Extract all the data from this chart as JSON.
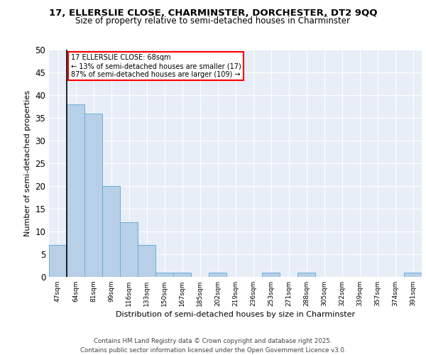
{
  "title1": "17, ELLERSLIE CLOSE, CHARMINSTER, DORCHESTER, DT2 9QQ",
  "title2": "Size of property relative to semi-detached houses in Charminster",
  "xlabel": "Distribution of semi-detached houses by size in Charminster",
  "ylabel": "Number of semi-detached properties",
  "categories": [
    "47sqm",
    "64sqm",
    "81sqm",
    "99sqm",
    "116sqm",
    "133sqm",
    "150sqm",
    "167sqm",
    "185sqm",
    "202sqm",
    "219sqm",
    "236sqm",
    "253sqm",
    "271sqm",
    "288sqm",
    "305sqm",
    "322sqm",
    "339sqm",
    "357sqm",
    "374sqm",
    "391sqm"
  ],
  "values": [
    7,
    38,
    36,
    20,
    12,
    7,
    1,
    1,
    0,
    1,
    0,
    0,
    1,
    0,
    1,
    0,
    0,
    0,
    0,
    0,
    1
  ],
  "bar_color": "#b8cfe8",
  "bar_edge_color": "#6baed6",
  "annotation_line1": "17 ELLERSLIE CLOSE: 68sqm",
  "annotation_line2": "← 13% of semi-detached houses are smaller (17)",
  "annotation_line3": "87% of semi-detached houses are larger (109) →",
  "vline_index": 1,
  "ylim": [
    0,
    50
  ],
  "yticks": [
    0,
    5,
    10,
    15,
    20,
    25,
    30,
    35,
    40,
    45,
    50
  ],
  "background_color": "#e8eef7",
  "footer1": "Contains HM Land Registry data © Crown copyright and database right 2025.",
  "footer2": "Contains public sector information licensed under the Open Government Licence v3.0."
}
